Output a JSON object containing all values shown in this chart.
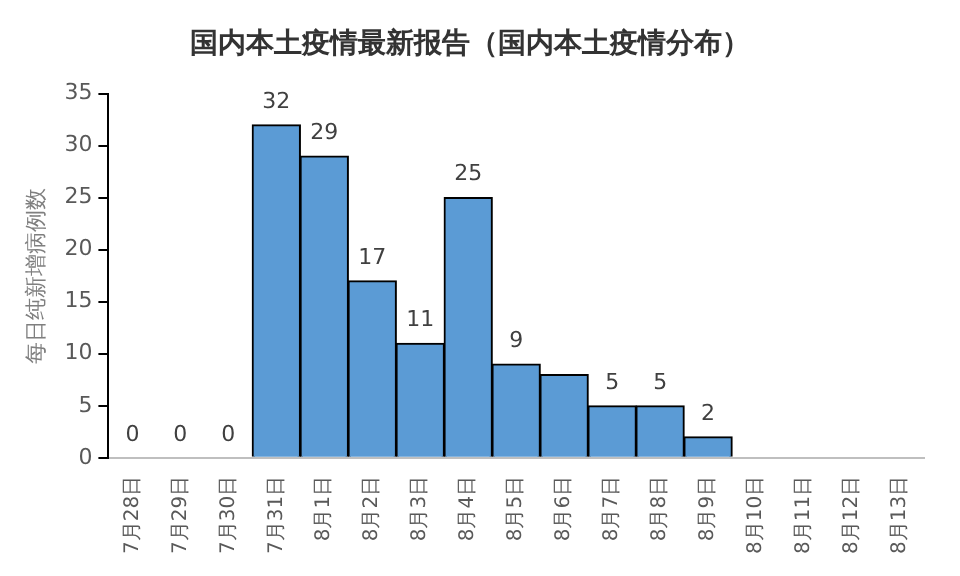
{
  "chart_data": {
    "type": "bar",
    "title": "国内本土疫情最新报告（国内本土疫情分布）",
    "ylabel": "每日纯新增病例数",
    "categories": [
      "7月28日",
      "7月29日",
      "7月30日",
      "7月31日",
      "8月1日",
      "8月2日",
      "8月3日",
      "8月4日",
      "8月5日",
      "8月6日",
      "8月7日",
      "8月8日",
      "8月9日",
      "8月10日",
      "8月11日",
      "8月12日",
      "8月13日"
    ],
    "values": [
      0,
      0,
      0,
      32,
      29,
      17,
      11,
      25,
      9,
      8,
      5,
      5,
      2,
      null,
      null,
      null,
      null
    ],
    "value_labels": [
      "0",
      "0",
      "0",
      "32",
      "29",
      "17",
      "11",
      "25",
      "9",
      null,
      "5",
      "5",
      "2",
      null,
      null,
      null,
      null
    ],
    "color": "#5b9bd5",
    "ylim": [
      0,
      35
    ],
    "yticks": [
      0,
      5,
      10,
      15,
      20,
      25,
      30,
      35
    ],
    "grid": false,
    "legend": false
  }
}
